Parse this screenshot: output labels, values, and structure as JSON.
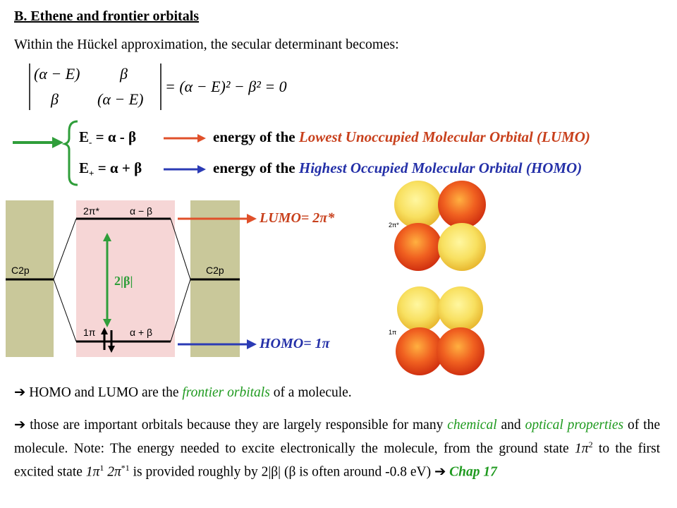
{
  "title": "B. Ethene and frontier orbitals",
  "intro": "Within the Hückel approximation, the secular determinant becomes:",
  "determinant": {
    "m11": "(α − E)",
    "m12": "β",
    "m21": "β",
    "m22": "(α − E)",
    "rhs": "= (α − E)² − β² = 0"
  },
  "energies": {
    "e_minus": {
      "label": "E",
      "sub": "-",
      "expr": " = α - β",
      "desc_prefix": "energy of the ",
      "desc_highlight": "Lowest Unoccupied Molecular Orbital (LUMO)"
    },
    "e_plus": {
      "label": "E",
      "sub": "+",
      "expr": " = α + β",
      "desc_prefix": "energy of the ",
      "desc_highlight": "Highest Occupied Molecular Orbital (HOMO)"
    }
  },
  "diagram": {
    "left_label": "C2p",
    "right_label": "C2p",
    "upper_level": "2π*",
    "upper_energy": "α − β",
    "lower_level": "1π",
    "lower_energy": "α + β",
    "gap_label": "2|β|"
  },
  "lumo_label": "LUMO= 2π*",
  "homo_label": "HOMO= 1π",
  "orbital_images": {
    "upper_label": "2π*",
    "lower_label": "1π"
  },
  "bullet1": {
    "prefix": " HOMO and LUMO are the ",
    "highlight": "frontier orbitals",
    "suffix": " of a molecule."
  },
  "bullet2": {
    "p1": " those are important orbitals because they are largely responsible for many ",
    "h1": "chemical",
    "p2": " and ",
    "h2": "optical properties",
    "p3": " of the molecule. Note: The energy needed to excite electronically the molecule, from the ground state ",
    "gs": "1π",
    "gs_sup": "2",
    "p4": " to the first excited state ",
    "es1": "1π",
    "es1_sup": "1",
    "es2": " 2π",
    "es2_sup": "*1",
    "p5": " is provided roughly by 2|β| (β is often around -0.8 eV) ",
    "chap": "Chap 17"
  },
  "colors": {
    "green": "#2f9e3a",
    "red": "#e0502a",
    "blue": "#2b3bb5",
    "olive": "#c9c89a",
    "pink": "#f6d6d6"
  }
}
